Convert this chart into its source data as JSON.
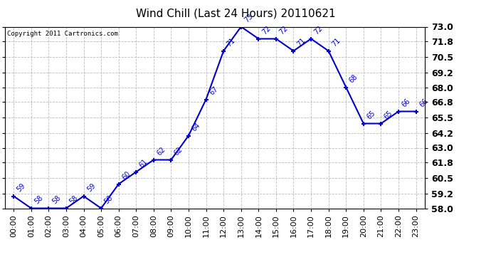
{
  "title": "Wind Chill (Last 24 Hours) 20110621",
  "copyright": "Copyright 2011 Cartronics.com",
  "hours": [
    0,
    1,
    2,
    3,
    4,
    5,
    6,
    7,
    8,
    9,
    10,
    11,
    12,
    13,
    14,
    15,
    16,
    17,
    18,
    19,
    20,
    21,
    22,
    23
  ],
  "x_labels": [
    "00:00",
    "01:00",
    "02:00",
    "03:00",
    "04:00",
    "05:00",
    "06:00",
    "07:00",
    "08:00",
    "09:00",
    "10:00",
    "11:00",
    "12:00",
    "13:00",
    "14:00",
    "15:00",
    "16:00",
    "17:00",
    "18:00",
    "19:00",
    "20:00",
    "21:00",
    "22:00",
    "23:00"
  ],
  "values": [
    59,
    58,
    58,
    58,
    59,
    58,
    60,
    61,
    62,
    62,
    64,
    67,
    71,
    73,
    72,
    72,
    71,
    72,
    71,
    68,
    65,
    65,
    66,
    66
  ],
  "ylim_min": 58.0,
  "ylim_max": 73.0,
  "yticks": [
    58.0,
    59.2,
    60.5,
    61.8,
    63.0,
    64.2,
    65.5,
    66.8,
    68.0,
    69.2,
    70.5,
    71.8,
    73.0
  ],
  "line_color": "#0000cc",
  "marker_color": "#0000cc",
  "bg_color": "#ffffff",
  "plot_bg_color": "#ffffff",
  "grid_color": "#bbbbbb",
  "title_fontsize": 11,
  "label_fontsize": 8,
  "annot_fontsize": 7,
  "copyright_fontsize": 6.5,
  "yticklabel_fontsize": 9,
  "yticklabel_fontweight": "bold"
}
